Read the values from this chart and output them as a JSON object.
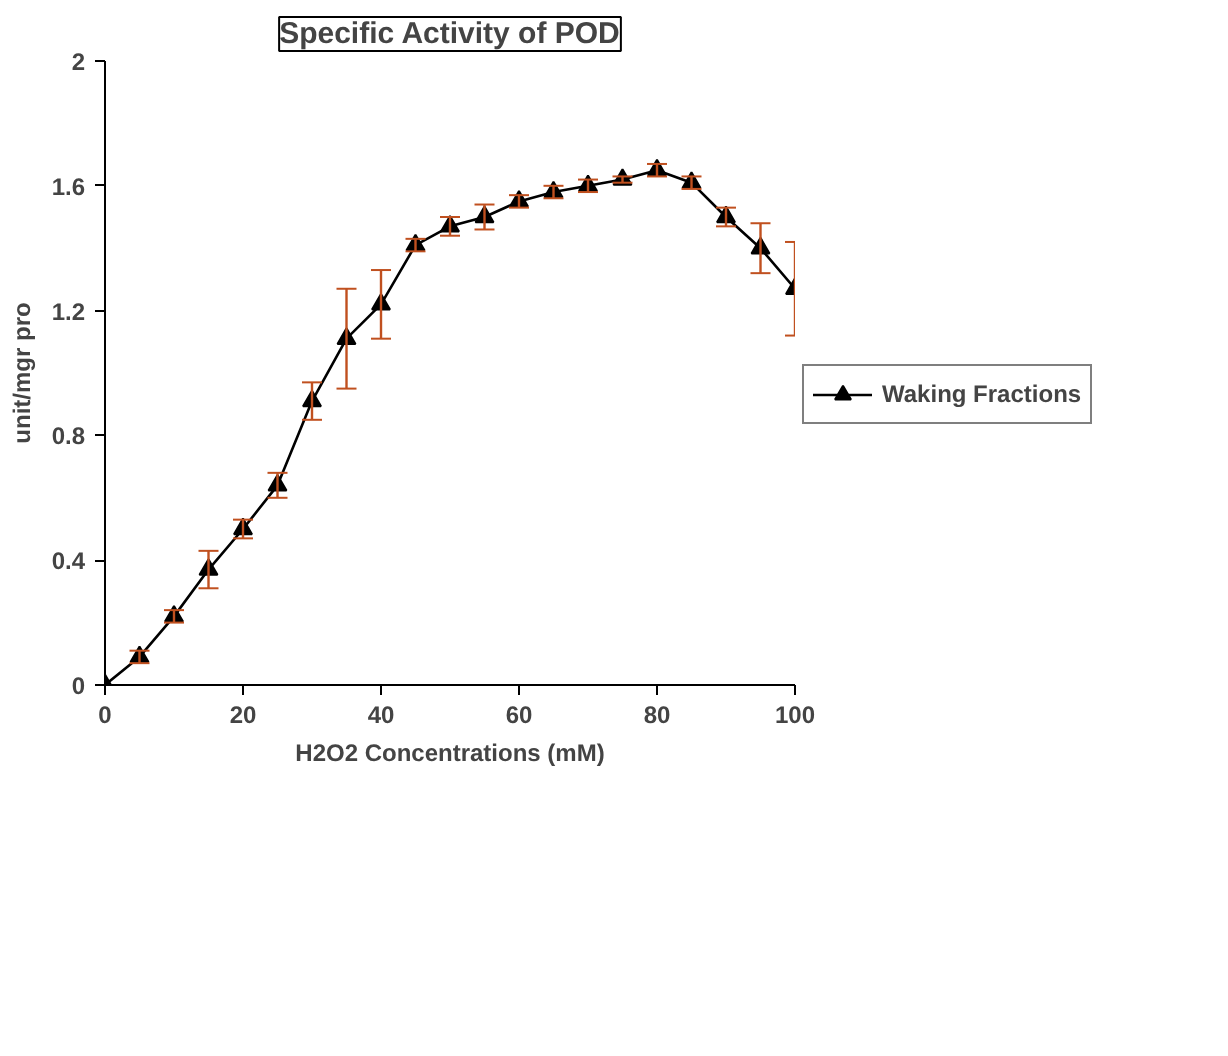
{
  "chart_data": {
    "type": "line",
    "title": "Specific Activity of POD",
    "xlabel": "H2O2 Concentrations (mM)",
    "ylabel": "unit/mgr pro",
    "x": [
      0,
      5,
      10,
      15,
      20,
      25,
      30,
      35,
      40,
      45,
      50,
      55,
      60,
      65,
      70,
      75,
      80,
      85,
      90,
      95,
      100
    ],
    "series": [
      {
        "name": "Waking Fractions",
        "color": "#000000",
        "values": [
          0,
          0.09,
          0.22,
          0.37,
          0.5,
          0.64,
          0.91,
          1.11,
          1.22,
          1.41,
          1.47,
          1.5,
          1.55,
          1.58,
          1.6,
          1.62,
          1.65,
          1.61,
          1.5,
          1.4,
          1.27
        ],
        "errors": [
          null,
          0.02,
          0.02,
          0.06,
          0.03,
          0.04,
          0.06,
          0.16,
          0.11,
          0.02,
          0.03,
          0.04,
          0.02,
          0.02,
          0.02,
          0.01,
          0.02,
          0.02,
          0.03,
          0.08,
          0.15
        ]
      }
    ],
    "xlim": [
      0,
      100
    ],
    "xticks": [
      0,
      20,
      40,
      60,
      80,
      100
    ],
    "ylim": [
      0,
      2
    ],
    "yticks": [
      0,
      0.4,
      0.8,
      1.2,
      1.6,
      2
    ],
    "grid": false,
    "legend": "right",
    "marker": "triangle",
    "line_style": "solid"
  }
}
